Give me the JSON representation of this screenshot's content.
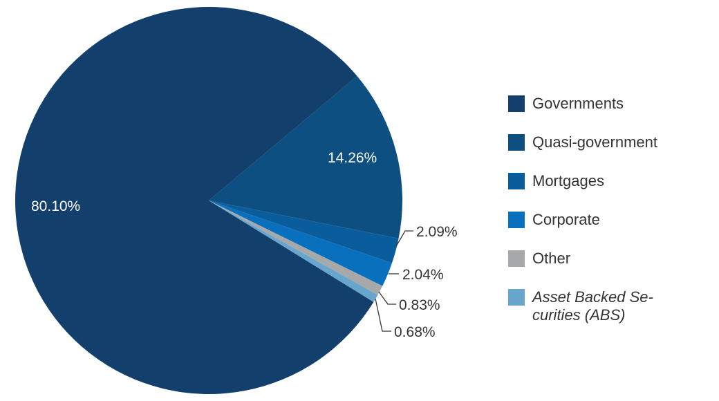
{
  "chart_data": {
    "type": "pie",
    "title": "",
    "start_angle_deg_clockwise_from_top": 50,
    "direction": "clockwise",
    "slices": [
      {
        "label": "Quasi-government",
        "value": 14.26,
        "display": "14.26%",
        "color": "#0c4f80",
        "label_position": "inside"
      },
      {
        "label": "Mortgages",
        "value": 2.09,
        "display": "2.09%",
        "color": "#0a5d9c",
        "label_position": "outside"
      },
      {
        "label": "Corporate",
        "value": 2.04,
        "display": "2.04%",
        "color": "#0870bd",
        "label_position": "outside"
      },
      {
        "label": "Other",
        "value": 0.83,
        "display": "0.83%",
        "color": "#a7a8aa",
        "label_position": "outside"
      },
      {
        "label": "Asset Backed Securities (ABS)",
        "value": 0.68,
        "display": "0.68%",
        "color": "#69a6cd",
        "label_position": "outside"
      },
      {
        "label": "Governments",
        "value": 80.1,
        "display": "80.10%",
        "color": "#123f6b",
        "label_position": "inside"
      }
    ],
    "legend_position": "right"
  },
  "legend": {
    "items": [
      {
        "label": "Governments",
        "color": "#123f6b"
      },
      {
        "label": "Quasi-government",
        "color": "#0c4f80"
      },
      {
        "label": "Mortgages",
        "color": "#0a5d9c"
      },
      {
        "label": "Corporate",
        "color": "#0870bd"
      },
      {
        "label": "Other",
        "color": "#a7a8aa"
      },
      {
        "label": "Asset Backed Se-curities (ABS)",
        "color": "#69a6cd",
        "italic": true
      }
    ]
  },
  "labels": {
    "governments": "80.10%",
    "quasi_government": "14.26%",
    "mortgages": "2.09%",
    "corporate": "2.04%",
    "other": "0.83%",
    "abs": "0.68%"
  }
}
